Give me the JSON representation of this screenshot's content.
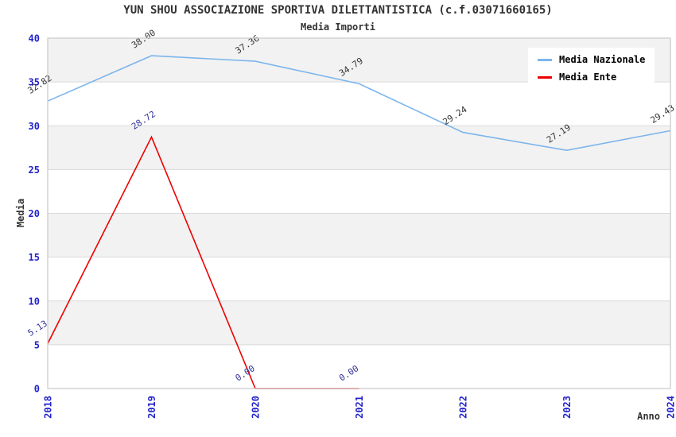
{
  "header": {
    "title": "YUN SHOU ASSOCIAZIONE SPORTIVA DILETTANTISTICA (c.f.03071660165)",
    "subtitle": "Media Importi"
  },
  "chart_data": {
    "type": "line",
    "x": [
      "2018",
      "2019",
      "2020",
      "2021",
      "2022",
      "2023",
      "2024"
    ],
    "series": [
      {
        "name": "Media Nazionale",
        "color": "#7cb5ec",
        "label_color": "#333333",
        "values": [
          32.82,
          38.0,
          37.36,
          34.79,
          29.24,
          27.19,
          29.43
        ]
      },
      {
        "name": "Media Ente",
        "color": "#ee0000",
        "label_color": "#333399",
        "values": [
          5.13,
          28.72,
          0.0,
          0.0,
          null,
          null,
          null
        ]
      }
    ],
    "xlabel": "Anno",
    "ylabel": "Media",
    "ylim": [
      0,
      40
    ],
    "ytick_step": 5,
    "yticks": [
      0,
      5,
      10,
      15,
      20,
      25,
      30,
      35,
      40
    ],
    "grid": true,
    "legend_position": "top-right",
    "colors": {
      "band": "#f2f2f2",
      "grid": "#d9d9d9",
      "border": "#cccccc",
      "tick_label": "#2222cc",
      "axis_label": "#333333"
    }
  }
}
